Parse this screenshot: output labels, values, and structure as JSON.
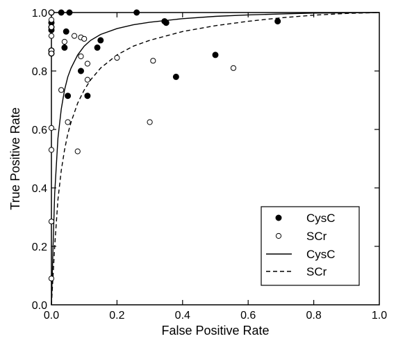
{
  "chart_data": {
    "type": "scatter",
    "xlabel": "False Positive Rate",
    "ylabel": "True Positive Rate",
    "xlim": [
      0,
      1
    ],
    "ylim": [
      0,
      1
    ],
    "xticks": [
      "0.0",
      "0.2",
      "0.4",
      "0.6",
      "0.8",
      "1.0"
    ],
    "yticks": [
      "0.0",
      "0.2",
      "0.4",
      "0.6",
      "0.8",
      "1.0"
    ],
    "grid": false,
    "legend_position": "bottom-right",
    "series": [
      {
        "name": "CysC",
        "kind": "points",
        "marker": "filled-circle",
        "x": [
          0.0,
          0.0,
          0.0,
          0.0,
          0.0,
          0.0,
          0.03,
          0.055,
          0.045,
          0.04,
          0.15,
          0.14,
          0.09,
          0.05,
          0.11,
          0.26,
          0.345,
          0.35,
          0.5,
          0.38,
          0.69
        ],
        "y": [
          1.0,
          0.965,
          0.95,
          0.87,
          0.86,
          0.94,
          1.0,
          1.0,
          0.935,
          0.88,
          0.905,
          0.88,
          0.8,
          0.715,
          0.715,
          1.0,
          0.97,
          0.965,
          0.855,
          0.78,
          0.97
        ]
      },
      {
        "name": "SCr",
        "kind": "points",
        "marker": "open-circle",
        "x": [
          0.0,
          0.0,
          0.0,
          0.0,
          0.0,
          0.0,
          0.0,
          0.0,
          0.0,
          0.0,
          0.04,
          0.07,
          0.09,
          0.1,
          0.11,
          0.09,
          0.11,
          0.03,
          0.05,
          0.08,
          0.2,
          0.31,
          0.3,
          0.555
        ],
        "y": [
          1.0,
          0.95,
          0.92,
          0.87,
          0.86,
          0.605,
          0.53,
          0.285,
          0.09,
          0.975,
          0.9,
          0.92,
          0.915,
          0.91,
          0.825,
          0.85,
          0.77,
          0.735,
          0.625,
          0.525,
          0.845,
          0.835,
          0.625,
          0.81
        ]
      },
      {
        "name": "CysC",
        "kind": "curve",
        "line": "solid",
        "x": [
          0.0,
          0.005,
          0.01,
          0.02,
          0.03,
          0.04,
          0.05,
          0.06,
          0.08,
          0.1,
          0.12,
          0.15,
          0.2,
          0.25,
          0.3,
          0.4,
          0.5,
          0.6,
          0.7,
          0.8,
          0.9,
          1.0
        ],
        "y": [
          0.0,
          0.2,
          0.38,
          0.57,
          0.67,
          0.735,
          0.78,
          0.81,
          0.855,
          0.885,
          0.905,
          0.925,
          0.945,
          0.958,
          0.967,
          0.979,
          0.987,
          0.992,
          0.995,
          0.998,
          0.999,
          1.0
        ]
      },
      {
        "name": "SCr",
        "kind": "curve",
        "line": "dashed",
        "x": [
          0.0,
          0.005,
          0.01,
          0.02,
          0.03,
          0.04,
          0.05,
          0.06,
          0.08,
          0.1,
          0.12,
          0.15,
          0.2,
          0.25,
          0.3,
          0.4,
          0.5,
          0.6,
          0.7,
          0.8,
          0.9,
          1.0
        ],
        "y": [
          0.0,
          0.1,
          0.2,
          0.36,
          0.46,
          0.53,
          0.585,
          0.625,
          0.69,
          0.735,
          0.77,
          0.81,
          0.855,
          0.885,
          0.905,
          0.935,
          0.955,
          0.97,
          0.982,
          0.991,
          0.997,
          1.0
        ]
      }
    ],
    "legend": [
      {
        "label": "CysC",
        "symbol": "filled-circle"
      },
      {
        "label": "SCr",
        "symbol": "open-circle"
      },
      {
        "label": "CysC",
        "symbol": "solid-line"
      },
      {
        "label": "SCr",
        "symbol": "dashed-line"
      }
    ]
  }
}
